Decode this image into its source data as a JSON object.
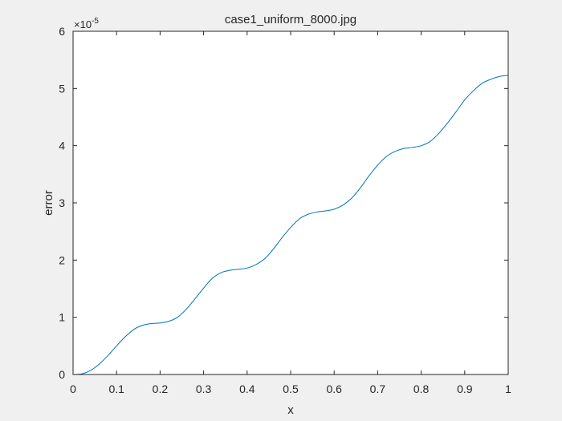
{
  "chart_data": {
    "type": "line",
    "title": "case1_uniform_8000.jpg",
    "xlabel": "x",
    "ylabel": "error",
    "y_exponent_label": "×10",
    "y_exponent_power": "-5",
    "y_scale": 1e-05,
    "xlim": [
      0,
      1
    ],
    "ylim": [
      0,
      6
    ],
    "xticks": [
      0,
      0.1,
      0.2,
      0.3,
      0.4,
      0.5,
      0.6,
      0.7,
      0.8,
      0.9,
      1
    ],
    "xtick_labels": [
      "0",
      "0.1",
      "0.2",
      "0.3",
      "0.4",
      "0.5",
      "0.6",
      "0.7",
      "0.8",
      "0.9",
      "1"
    ],
    "yticks": [
      0,
      1,
      2,
      3,
      4,
      5,
      6
    ],
    "ytick_labels": [
      "0",
      "1",
      "2",
      "3",
      "4",
      "5",
      "6"
    ],
    "grid": false,
    "series": [
      {
        "color": "#0072bd",
        "x": [
          0,
          0.02,
          0.04,
          0.06,
          0.08,
          0.1,
          0.12,
          0.14,
          0.16,
          0.18,
          0.2,
          0.22,
          0.24,
          0.26,
          0.28,
          0.3,
          0.32,
          0.34,
          0.36,
          0.38,
          0.4,
          0.42,
          0.44,
          0.46,
          0.48,
          0.5,
          0.52,
          0.54,
          0.56,
          0.58,
          0.6,
          0.62,
          0.64,
          0.66,
          0.68,
          0.7,
          0.72,
          0.74,
          0.76,
          0.78,
          0.8,
          0.82,
          0.84,
          0.86,
          0.88,
          0.9,
          0.92,
          0.94,
          0.96,
          0.98,
          1.0
        ],
        "values": [
          0,
          0.01,
          0.07,
          0.18,
          0.33,
          0.5,
          0.66,
          0.79,
          0.86,
          0.89,
          0.9,
          0.93,
          1.0,
          1.14,
          1.32,
          1.51,
          1.68,
          1.78,
          1.82,
          1.84,
          1.86,
          1.92,
          2.02,
          2.19,
          2.39,
          2.57,
          2.72,
          2.8,
          2.84,
          2.86,
          2.89,
          2.96,
          3.08,
          3.26,
          3.47,
          3.66,
          3.81,
          3.9,
          3.95,
          3.97,
          4.0,
          4.07,
          4.21,
          4.39,
          4.59,
          4.8,
          4.96,
          5.09,
          5.16,
          5.21,
          5.23
        ]
      }
    ]
  }
}
